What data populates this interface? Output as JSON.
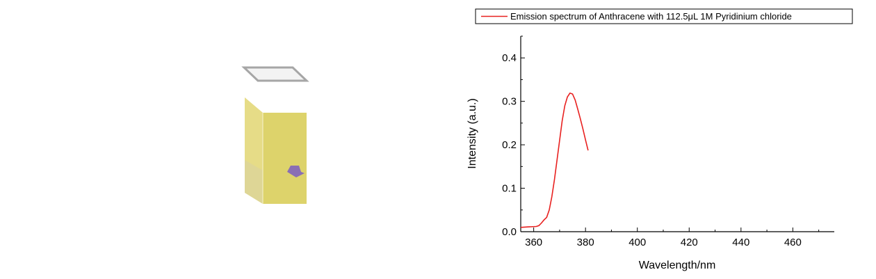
{
  "illustration": {
    "liquid_color": "#ddd36b",
    "side_color": "#e6dc87",
    "lid_color": "#a6a6a6",
    "sample_color": "#8a6fb4"
  },
  "chart_data": {
    "type": "line",
    "title": "",
    "xlabel": "Wavelength/nm",
    "ylabel": "Intensity (a.u.)",
    "xlim": [
      355,
      476
    ],
    "ylim": [
      0.0,
      0.45
    ],
    "xticks": [
      360,
      380,
      400,
      420,
      440,
      460
    ],
    "xtick_labels": [
      "360",
      "380",
      "400",
      "420",
      "440",
      "460"
    ],
    "yticks": [
      0.0,
      0.1,
      0.2,
      0.3,
      0.4
    ],
    "ytick_labels": [
      "0.0",
      "0.1",
      "0.2",
      "0.3",
      "0.4"
    ],
    "grid": false,
    "legend_position": "top",
    "series": [
      {
        "name": "Emission spectrum of Anthracene with 112.5μL 1M Pyridinium chloride",
        "color": "#e8201f",
        "x": [
          355,
          358,
          361,
          362,
          363,
          364,
          365,
          366,
          367,
          368,
          369,
          370,
          371,
          372,
          373,
          374,
          375,
          376,
          377,
          378,
          379,
          380,
          381
        ],
        "y": [
          0.01,
          0.011,
          0.012,
          0.014,
          0.02,
          0.027,
          0.033,
          0.05,
          0.08,
          0.12,
          0.165,
          0.21,
          0.255,
          0.29,
          0.31,
          0.319,
          0.317,
          0.303,
          0.282,
          0.26,
          0.236,
          0.211,
          0.187
        ]
      }
    ]
  }
}
